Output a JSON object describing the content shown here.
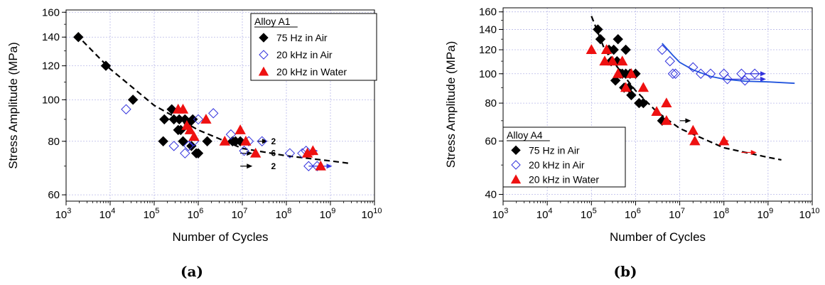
{
  "colors": {
    "air75": "#000000",
    "air20k": "#3333dd",
    "water": "#ee1111",
    "fit_black": "#000000",
    "fit_blue": "#2255dd",
    "grid": "#b8b8e8"
  },
  "chart_data": [
    {
      "type": "scatter",
      "caption": "(a)",
      "xlabel": "Number of Cycles",
      "ylabel": "Stress Amplitude (MPa)",
      "x_scale": "log",
      "y_scale": "log",
      "xlim": [
        1000,
        10000000000
      ],
      "ylim": [
        58,
        162
      ],
      "grid": true,
      "x_ticks": [
        {
          "value": 1000,
          "base": "10",
          "exp": "3"
        },
        {
          "value": 10000,
          "base": "10",
          "exp": "4"
        },
        {
          "value": 100000,
          "base": "10",
          "exp": "5"
        },
        {
          "value": 1000000,
          "base": "10",
          "exp": "6"
        },
        {
          "value": 10000000,
          "base": "10",
          "exp": "7"
        },
        {
          "value": 100000000,
          "base": "10",
          "exp": "8"
        },
        {
          "value": 1000000000,
          "base": "10",
          "exp": "9"
        },
        {
          "value": 10000000000,
          "base": "10",
          "exp": "10"
        }
      ],
      "y_ticks": [
        {
          "value": 60,
          "label": "60"
        },
        {
          "value": 80,
          "label": "80"
        },
        {
          "value": 100,
          "label": "100"
        },
        {
          "value": 120,
          "label": "120"
        },
        {
          "value": 140,
          "label": "140"
        },
        {
          "value": 160,
          "label": "160"
        }
      ],
      "legend": {
        "title": "Alloy A1",
        "position": "top-right",
        "entries": [
          {
            "marker": "diamond-filled",
            "color": "#000000",
            "label": "75 Hz in Air"
          },
          {
            "marker": "diamond-open",
            "color": "#3333dd",
            "label": "20 kHz in Air"
          },
          {
            "marker": "triangle-filled",
            "color": "#ee1111",
            "label": "20 kHz in Water"
          }
        ]
      },
      "series": [
        {
          "marker": "diamond-filled",
          "color": "#000000",
          "points": [
            [
              1900,
              140
            ],
            [
              8000,
              120
            ],
            [
              33000,
              100
            ],
            [
              160000,
              80
            ],
            [
              170000,
              90
            ],
            [
              250000,
              95
            ],
            [
              280000,
              90
            ],
            [
              350000,
              85
            ],
            [
              370000,
              90
            ],
            [
              400000,
              85
            ],
            [
              450000,
              80
            ],
            [
              500000,
              90
            ],
            [
              600000,
              88
            ],
            [
              700000,
              78
            ],
            [
              750000,
              90
            ],
            [
              900000,
              75
            ],
            [
              1000000,
              75
            ],
            [
              1600000,
              80
            ],
            [
              6000000,
              80
            ],
            [
              7000000,
              80
            ],
            [
              9000000,
              80
            ]
          ]
        },
        {
          "marker": "diamond-open",
          "color": "#3333dd",
          "points": [
            [
              23000,
              95
            ],
            [
              280000,
              78
            ],
            [
              500000,
              75
            ],
            [
              600000,
              78
            ],
            [
              800000,
              80
            ],
            [
              1000000,
              90
            ],
            [
              2200000,
              93
            ],
            [
              5500000,
              83
            ],
            [
              11000000,
              76
            ],
            [
              14000000,
              80
            ],
            [
              28000000,
              80
            ],
            [
              120000000,
              75
            ],
            [
              230000000,
              75
            ],
            [
              280000000,
              76
            ],
            [
              320000000,
              70
            ],
            [
              500000000,
              70
            ]
          ]
        },
        {
          "marker": "triangle-filled",
          "color": "#ee1111",
          "points": [
            [
              350000,
              95
            ],
            [
              450000,
              95
            ],
            [
              550000,
              87
            ],
            [
              650000,
              85
            ],
            [
              800000,
              82
            ],
            [
              1500000,
              90
            ],
            [
              4000000,
              80
            ],
            [
              9000000,
              85
            ],
            [
              12000000,
              80
            ],
            [
              20000000,
              75
            ],
            [
              300000000,
              75
            ],
            [
              400000000,
              76
            ],
            [
              600000000,
              70
            ]
          ]
        }
      ],
      "runouts": [
        {
          "from": [
            9000000,
            75
          ],
          "to": [
            17000000,
            75
          ],
          "color": "#000000"
        },
        {
          "from": [
            9000000,
            70
          ],
          "to": [
            17000000,
            70
          ],
          "color": "#000000"
        },
        {
          "from": [
            22000000,
            80
          ],
          "to": [
            38000000,
            80
          ],
          "color": "#000000"
        },
        {
          "from": [
            280000000,
            76
          ],
          "to": [
            520000000,
            76
          ],
          "color": "#3333dd"
        },
        {
          "from": [
            320000000,
            70
          ],
          "to": [
            1100000000,
            70
          ],
          "color": "#3333dd"
        },
        {
          "from": [
            300000000,
            75
          ],
          "to": [
            520000000,
            75
          ],
          "color": "#ee1111"
        }
      ],
      "annotations": [
        {
          "text": "2",
          "x": 45000000,
          "y": 80
        },
        {
          "text": "6",
          "x": 45000000,
          "y": 75
        },
        {
          "text": "2",
          "x": 45000000,
          "y": 70
        }
      ],
      "fits": [
        {
          "color": "#000000",
          "dashed": true,
          "points": [
            [
              1700,
              142
            ],
            [
              10000,
              118
            ],
            [
              100000,
              97
            ],
            [
              1000000,
              85
            ],
            [
              10000000,
              77
            ],
            [
              100000000,
              74
            ],
            [
              1000000000,
              72
            ],
            [
              2800000000,
              71
            ]
          ]
        }
      ]
    },
    {
      "type": "scatter",
      "caption": "(b)",
      "xlabel": "Number of Cycles",
      "ylabel": "Stress Amplitude (MPa)",
      "x_scale": "log",
      "y_scale": "log",
      "xlim": [
        1000,
        10000000000
      ],
      "ylim": [
        38,
        165
      ],
      "grid": true,
      "x_ticks": [
        {
          "value": 1000,
          "base": "10",
          "exp": "3"
        },
        {
          "value": 10000,
          "base": "10",
          "exp": "4"
        },
        {
          "value": 100000,
          "base": "10",
          "exp": "5"
        },
        {
          "value": 1000000,
          "base": "10",
          "exp": "6"
        },
        {
          "value": 10000000,
          "base": "10",
          "exp": "7"
        },
        {
          "value": 100000000,
          "base": "10",
          "exp": "8"
        },
        {
          "value": 1000000000,
          "base": "10",
          "exp": "9"
        },
        {
          "value": 10000000000,
          "base": "10",
          "exp": "10"
        }
      ],
      "y_ticks": [
        {
          "value": 40,
          "label": "40"
        },
        {
          "value": 60,
          "label": "60"
        },
        {
          "value": 80,
          "label": "80"
        },
        {
          "value": 100,
          "label": "100"
        },
        {
          "value": 120,
          "label": "120"
        },
        {
          "value": 140,
          "label": "140"
        },
        {
          "value": 160,
          "label": "160"
        }
      ],
      "legend": {
        "title": "Alloy A4",
        "position": "bottom-left",
        "entries": [
          {
            "marker": "diamond-filled",
            "color": "#000000",
            "label": "75 Hz in Air"
          },
          {
            "marker": "diamond-open",
            "color": "#3333dd",
            "label": "20 kHz in Air"
          },
          {
            "marker": "triangle-filled",
            "color": "#ee1111",
            "label": "20 kHz in Water"
          }
        ]
      },
      "series": [
        {
          "marker": "diamond-filled",
          "color": "#000000",
          "points": [
            [
              140000,
              140
            ],
            [
              160000,
              130
            ],
            [
              250000,
              120
            ],
            [
              280000,
              110
            ],
            [
              320000,
              120
            ],
            [
              350000,
              95
            ],
            [
              380000,
              110
            ],
            [
              400000,
              130
            ],
            [
              450000,
              100
            ],
            [
              500000,
              100
            ],
            [
              550000,
              90
            ],
            [
              600000,
              100
            ],
            [
              600000,
              120
            ],
            [
              700000,
              90
            ],
            [
              750000,
              100
            ],
            [
              800000,
              85
            ],
            [
              1000000,
              100
            ],
            [
              1200000,
              80
            ],
            [
              1500000,
              80
            ],
            [
              4000000,
              70
            ]
          ]
        },
        {
          "marker": "diamond-open",
          "color": "#3333dd",
          "points": [
            [
              4000000,
              120
            ],
            [
              6000000,
              110
            ],
            [
              7000000,
              100
            ],
            [
              8000000,
              100
            ],
            [
              20000000,
              105
            ],
            [
              30000000,
              100
            ],
            [
              50000000,
              100
            ],
            [
              100000000,
              100
            ],
            [
              120000000,
              96
            ],
            [
              250000000,
              100
            ],
            [
              300000000,
              95
            ],
            [
              500000000,
              100
            ]
          ]
        },
        {
          "marker": "triangle-filled",
          "color": "#ee1111",
          "points": [
            [
              100000,
              120
            ],
            [
              200000,
              110
            ],
            [
              220000,
              120
            ],
            [
              300000,
              110
            ],
            [
              400000,
              100
            ],
            [
              500000,
              110
            ],
            [
              600000,
              90
            ],
            [
              800000,
              100
            ],
            [
              1500000,
              90
            ],
            [
              3000000,
              75
            ],
            [
              5000000,
              80
            ],
            [
              5000000,
              70
            ],
            [
              20000000,
              65
            ],
            [
              22000000,
              60
            ],
            [
              100000000,
              60
            ]
          ]
        }
      ],
      "runouts": [
        {
          "from": [
            10000000,
            70
          ],
          "to": [
            18000000,
            70
          ],
          "color": "#000000"
        },
        {
          "from": [
            300000000,
            100
          ],
          "to": [
            900000000,
            100
          ],
          "color": "#3333dd"
        },
        {
          "from": [
            120000000,
            96
          ],
          "to": [
            900000000,
            96
          ],
          "color": "#3333dd"
        },
        {
          "from": [
            100000000,
            60
          ],
          "to": [
            130000000,
            60
          ],
          "color": "#ee1111"
        },
        {
          "from": [
            250000000,
            55
          ],
          "to": [
            550000000,
            55
          ],
          "color": "#ee1111"
        }
      ],
      "annotations": [],
      "fits": [
        {
          "color": "#000000",
          "dashed": true,
          "points": [
            [
              100000,
              155
            ],
            [
              200000,
              120
            ],
            [
              500000,
              100
            ],
            [
              1000000,
              88
            ],
            [
              3000000,
              75
            ],
            [
              10000000,
              66
            ],
            [
              100000000,
              57
            ],
            [
              1000000000,
              53
            ],
            [
              2000000000,
              52
            ]
          ]
        },
        {
          "color": "#2255dd",
          "dashed": false,
          "points": [
            [
              4000000,
              126
            ],
            [
              7000000,
              115
            ],
            [
              10000000,
              109
            ],
            [
              20000000,
              103
            ],
            [
              50000000,
              98
            ],
            [
              100000000,
              96
            ],
            [
              300000000,
              94.5
            ],
            [
              1000000000,
              94
            ],
            [
              4000000000,
              93
            ]
          ]
        }
      ]
    }
  ]
}
